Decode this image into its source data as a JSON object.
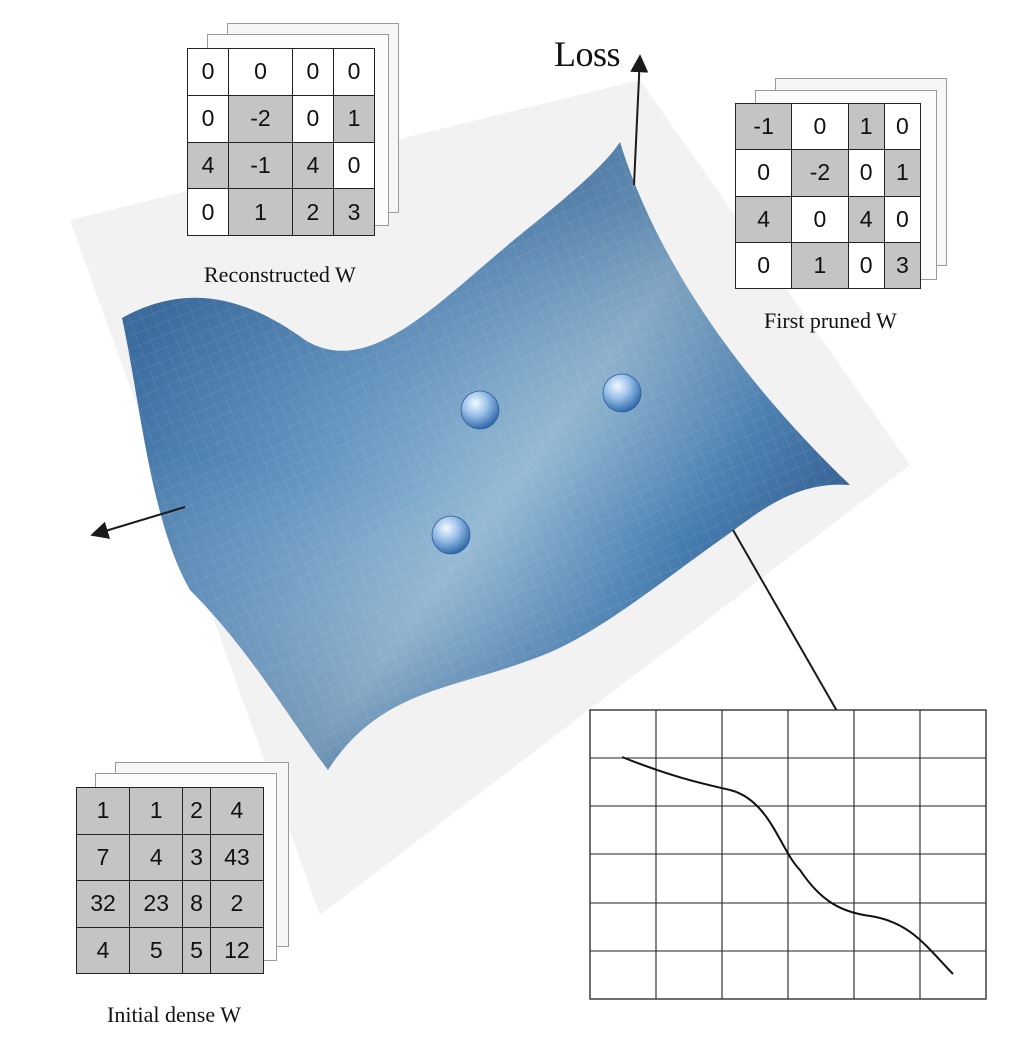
{
  "axis": {
    "loss_label": "Loss"
  },
  "matrices": {
    "reconstructed": {
      "caption": "Reconstructed  W",
      "cells": [
        [
          "0",
          "0",
          "0",
          "0"
        ],
        [
          "0",
          "-2",
          "0",
          "1"
        ],
        [
          "4",
          "-1",
          "4",
          "0"
        ],
        [
          "0",
          "1",
          "2",
          "3"
        ]
      ],
      "shaded": [
        [
          false,
          false,
          false,
          false
        ],
        [
          false,
          true,
          false,
          true
        ],
        [
          true,
          true,
          true,
          false
        ],
        [
          false,
          true,
          true,
          true
        ]
      ]
    },
    "first_pruned": {
      "caption": "First pruned W",
      "cells": [
        [
          "-1",
          "0",
          "1",
          "0"
        ],
        [
          "0",
          "-2",
          "0",
          "1"
        ],
        [
          "4",
          "0",
          "4",
          "0"
        ],
        [
          "0",
          "1",
          "0",
          "3"
        ]
      ],
      "shaded": [
        [
          true,
          false,
          true,
          false
        ],
        [
          false,
          true,
          false,
          true
        ],
        [
          true,
          false,
          true,
          false
        ],
        [
          false,
          true,
          false,
          true
        ]
      ]
    },
    "initial_dense": {
      "caption": "Initial dense W",
      "cells": [
        [
          "1",
          "1",
          "2",
          "4"
        ],
        [
          "7",
          "4",
          "3",
          "43"
        ],
        [
          "32",
          "23",
          "8",
          "2"
        ],
        [
          "4",
          "5",
          "5",
          "12"
        ]
      ],
      "shaded": [
        [
          true,
          true,
          true,
          true
        ],
        [
          true,
          true,
          true,
          true
        ],
        [
          true,
          true,
          true,
          true
        ],
        [
          true,
          true,
          true,
          true
        ]
      ]
    }
  },
  "colors": {
    "surface_dark": "#1f4f8f",
    "surface_light": "#8fb6d2",
    "cell_shaded": "#c4c4c4",
    "plane": "#f2f2f2"
  }
}
